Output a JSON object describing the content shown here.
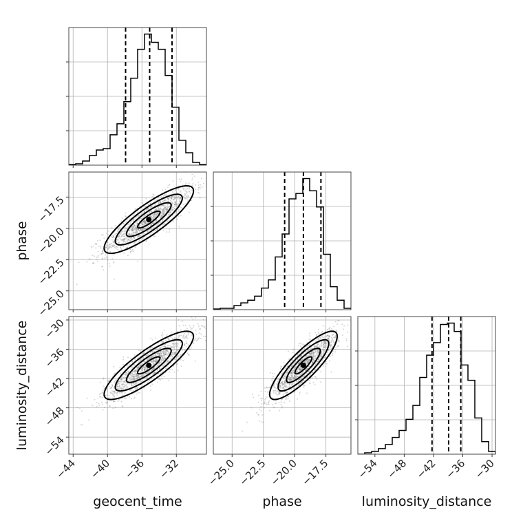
{
  "chart_data": {
    "type": "corner",
    "parameters": [
      "geocent_time",
      "phase",
      "luminosity_distance"
    ],
    "axis_labels": {
      "geocent_time": "geocent_time",
      "phase": "phase",
      "luminosity_distance": "luminosity_distance"
    },
    "ranges": {
      "geocent_time": [
        -44.5,
        -28.5
      ],
      "phase": [
        -26.5,
        -15.5
      ],
      "luminosity_distance": [
        -57.5,
        -29.3
      ]
    },
    "ticks": {
      "geocent_time": [
        -44,
        -40,
        -36,
        -32
      ],
      "phase": [
        -25.0,
        -22.5,
        -20.0,
        -17.5
      ],
      "luminosity_distance": [
        -54,
        -48,
        -42,
        -36,
        -30
      ]
    },
    "tick_labels": {
      "geocent_time": [
        "−44",
        "−40",
        "−36",
        "−32"
      ],
      "phase": [
        "−25.0",
        "−22.5",
        "−20.0",
        "−17.5"
      ],
      "luminosity_distance": [
        "−54",
        "−48",
        "−42",
        "−36",
        "−30"
      ]
    },
    "quantiles": {
      "geocent_time": [
        -37.9,
        -35.1,
        -32.5
      ],
      "phase": [
        -20.8,
        -19.3,
        -17.9
      ],
      "luminosity_distance": [
        -42.3,
        -38.9,
        -36.4
      ]
    },
    "means": {
      "geocent_time": -35.2,
      "phase": -19.3,
      "luminosity_distance": -39.3
    },
    "stds": {
      "geocent_time": 2.6,
      "phase": 1.35,
      "luminosity_distance": 3.5
    },
    "correlations": {
      "geocent_time|phase": 0.85,
      "geocent_time|luminosity_distance": 0.85,
      "phase|luminosity_distance": 0.85
    },
    "histograms": {
      "geocent_time": {
        "bin_edges": [
          -44.5,
          -43.7,
          -42.9,
          -42.1,
          -41.3,
          -40.5,
          -39.7,
          -38.9,
          -38.1,
          -37.3,
          -36.5,
          -35.7,
          -34.9,
          -34.1,
          -33.3,
          -32.5,
          -31.7,
          -30.9,
          -30.1,
          -29.3,
          -28.5
        ],
        "counts": [
          0.005,
          0.01,
          0.03,
          0.07,
          0.11,
          0.12,
          0.22,
          0.3,
          0.46,
          0.63,
          0.84,
          0.95,
          0.89,
          0.84,
          0.65,
          0.42,
          0.18,
          0.09,
          0.02,
          0.005
        ]
      },
      "phase": {
        "bin_edges": [
          -26.5,
          -25.95,
          -25.4,
          -24.85,
          -24.3,
          -23.75,
          -23.2,
          -22.65,
          -22.1,
          -21.55,
          -21.0,
          -20.45,
          -19.9,
          -19.35,
          -18.8,
          -18.25,
          -17.7,
          -17.15,
          -16.6,
          -16.05,
          -15.5
        ],
        "counts": [
          0.005,
          0.01,
          0.01,
          0.03,
          0.05,
          0.07,
          0.1,
          0.16,
          0.22,
          0.39,
          0.56,
          0.82,
          0.86,
          0.97,
          0.88,
          0.76,
          0.41,
          0.17,
          0.07,
          0.01
        ]
      },
      "luminosity_distance": {
        "bin_edges": [
          -57.5,
          -56.09,
          -54.68,
          -53.27,
          -51.86,
          -50.45,
          -49.04,
          -47.63,
          -46.22,
          -44.81,
          -43.4,
          -41.99,
          -40.58,
          -39.17,
          -37.76,
          -36.35,
          -34.94,
          -33.53,
          -32.12,
          -30.71,
          -29.3
        ],
        "counts": [
          0.0,
          0.01,
          0.02,
          0.04,
          0.07,
          0.12,
          0.17,
          0.25,
          0.35,
          0.55,
          0.71,
          0.8,
          0.93,
          0.94,
          0.88,
          0.64,
          0.53,
          0.26,
          0.09,
          0.02
        ]
      }
    },
    "grid": true,
    "scatter_color": "#8a8a8a",
    "contour_levels_sigma": [
      0.5,
      1.0,
      1.5,
      2.0
    ]
  }
}
